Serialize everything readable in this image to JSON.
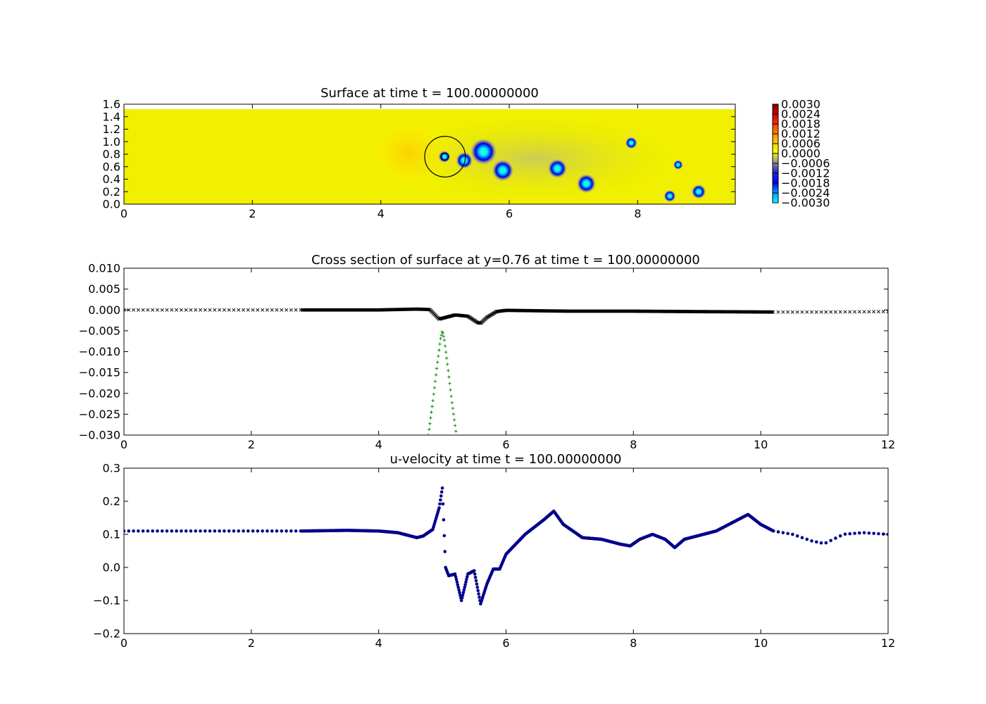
{
  "chart_data": [
    {
      "id": "surface",
      "type": "heatmap",
      "title": "Surface at time t =   100.00000000",
      "xlim": [
        0,
        9.52
      ],
      "ylim": [
        0,
        1.6
      ],
      "xticks": [
        {
          "v": 0,
          "label": "0"
        },
        {
          "v": 2,
          "label": "2"
        },
        {
          "v": 4,
          "label": "4"
        },
        {
          "v": 6,
          "label": "6"
        },
        {
          "v": 8,
          "label": "8"
        }
      ],
      "yticks": [
        {
          "v": 0.0,
          "label": "0.0"
        },
        {
          "v": 0.2,
          "label": "0.2"
        },
        {
          "v": 0.4,
          "label": "0.4"
        },
        {
          "v": 0.6,
          "label": "0.6"
        },
        {
          "v": 0.8,
          "label": "0.8"
        },
        {
          "v": 1.0,
          "label": "1.0"
        },
        {
          "v": 1.2,
          "label": "1.2"
        },
        {
          "v": 1.4,
          "label": "1.4"
        },
        {
          "v": 1.6,
          "label": "1.6"
        }
      ],
      "domain_ymax": 1.52,
      "background_color": "#f0f000",
      "colorbar": {
        "ticks": [
          "0.0030",
          "0.0024",
          "0.0018",
          "0.0012",
          "0.0006",
          "0.0000",
          "−0.0006",
          "−0.0012",
          "−0.0018",
          "−0.0024",
          "−0.0030"
        ],
        "colors": [
          "#800000",
          "#e00000",
          "#ff6000",
          "#ffc000",
          "#ffff00",
          "#a0a080",
          "#3030c0",
          "#0000ff",
          "#00a0ff",
          "#00ffff"
        ]
      },
      "circles": [
        {
          "x": 5.0,
          "y": 0.76,
          "r": 0.35
        },
        {
          "x": 5.0,
          "y": 0.76,
          "r": 0.06
        }
      ],
      "vortices": [
        {
          "x": 4.99,
          "y": 0.76,
          "r": 0.05
        },
        {
          "x": 5.3,
          "y": 0.7,
          "r": 0.07
        },
        {
          "x": 5.6,
          "y": 0.84,
          "r": 0.11
        },
        {
          "x": 5.9,
          "y": 0.54,
          "r": 0.09
        },
        {
          "x": 6.75,
          "y": 0.57,
          "r": 0.08
        },
        {
          "x": 7.2,
          "y": 0.33,
          "r": 0.08
        },
        {
          "x": 7.9,
          "y": 0.98,
          "r": 0.05
        },
        {
          "x": 8.63,
          "y": 0.63,
          "r": 0.04
        },
        {
          "x": 8.5,
          "y": 0.13,
          "r": 0.05
        },
        {
          "x": 8.95,
          "y": 0.2,
          "r": 0.06
        }
      ]
    },
    {
      "id": "cross-section",
      "type": "scatter",
      "title": "Cross section of surface at y=0.76 at time t =   100.00000000",
      "xlim": [
        0,
        12
      ],
      "ylim": [
        -0.03,
        0.01
      ],
      "xticks": [
        {
          "v": 0,
          "label": "0"
        },
        {
          "v": 2,
          "label": "2"
        },
        {
          "v": 4,
          "label": "4"
        },
        {
          "v": 6,
          "label": "6"
        },
        {
          "v": 8,
          "label": "8"
        },
        {
          "v": 10,
          "label": "10"
        },
        {
          "v": 12,
          "label": "12"
        }
      ],
      "yticks": [
        {
          "v": 0.01,
          "label": "0.010"
        },
        {
          "v": 0.005,
          "label": "0.005"
        },
        {
          "v": 0.0,
          "label": "0.000"
        },
        {
          "v": -0.005,
          "label": "−0.005"
        },
        {
          "v": -0.01,
          "label": "−0.010"
        },
        {
          "v": -0.015,
          "label": "−0.015"
        },
        {
          "v": -0.02,
          "label": "−0.020"
        },
        {
          "v": -0.025,
          "label": "−0.025"
        },
        {
          "v": -0.03,
          "label": "−0.030"
        }
      ],
      "series": [
        {
          "marker": "x",
          "color": "#000000",
          "dense_range": [
            2.8,
            10.2
          ],
          "x": [
            0,
            2.8,
            4.0,
            4.6,
            4.8,
            4.95,
            5.05,
            5.2,
            5.4,
            5.55,
            5.6,
            5.7,
            5.85,
            6.0,
            6.5,
            7.0,
            8.0,
            9.0,
            10.2,
            11.0,
            12.0
          ],
          "y": [
            0.0,
            0.0,
            0.0,
            0.0002,
            0.0001,
            -0.0022,
            -0.0018,
            -0.0012,
            -0.0015,
            -0.003,
            -0.0032,
            -0.0018,
            -0.0004,
            -0.0001,
            -0.0002,
            -0.0003,
            -0.0003,
            -0.0004,
            -0.0005,
            -0.0005,
            -0.0004
          ]
        },
        {
          "marker": "+",
          "color": "#008000",
          "x": [
            4.78,
            4.85,
            4.92,
            4.97,
            5.0,
            5.03,
            5.08,
            5.15,
            5.22
          ],
          "y": [
            -0.03,
            -0.022,
            -0.013,
            -0.007,
            -0.005,
            -0.007,
            -0.013,
            -0.022,
            -0.03
          ]
        }
      ]
    },
    {
      "id": "u-velocity",
      "type": "scatter",
      "title": "u-velocity at time t =   100.00000000",
      "xlim": [
        0,
        12
      ],
      "ylim": [
        -0.2,
        0.3
      ],
      "xticks": [
        {
          "v": 0,
          "label": "0"
        },
        {
          "v": 2,
          "label": "2"
        },
        {
          "v": 4,
          "label": "4"
        },
        {
          "v": 6,
          "label": "6"
        },
        {
          "v": 8,
          "label": "8"
        },
        {
          "v": 10,
          "label": "10"
        },
        {
          "v": 12,
          "label": "12"
        }
      ],
      "yticks": [
        {
          "v": 0.3,
          "label": "0.3"
        },
        {
          "v": 0.2,
          "label": "0.2"
        },
        {
          "v": 0.1,
          "label": "0.1"
        },
        {
          "v": 0.0,
          "label": "0.0"
        },
        {
          "v": -0.1,
          "label": "−0.1"
        },
        {
          "v": -0.2,
          "label": "−0.2"
        }
      ],
      "series": [
        {
          "marker": "o",
          "color": "#00008b",
          "dense_range": [
            2.8,
            10.2
          ],
          "x": [
            0,
            2.8,
            3.5,
            4.0,
            4.3,
            4.6,
            4.7,
            4.85,
            4.95,
            5.0,
            5.05,
            5.1,
            5.2,
            5.3,
            5.4,
            5.5,
            5.6,
            5.7,
            5.8,
            5.9,
            6.0,
            6.3,
            6.6,
            6.75,
            6.9,
            7.2,
            7.5,
            7.8,
            7.95,
            8.1,
            8.3,
            8.5,
            8.65,
            8.8,
            9.0,
            9.3,
            9.6,
            9.8,
            10.0,
            10.2,
            10.5,
            10.8,
            11.0,
            11.3,
            11.6,
            12.0
          ],
          "y": [
            0.11,
            0.11,
            0.112,
            0.11,
            0.105,
            0.09,
            0.095,
            0.115,
            0.18,
            0.24,
            0.0,
            -0.025,
            -0.02,
            -0.1,
            -0.02,
            -0.01,
            -0.11,
            -0.05,
            -0.005,
            -0.005,
            0.04,
            0.1,
            0.145,
            0.17,
            0.13,
            0.09,
            0.085,
            0.07,
            0.065,
            0.085,
            0.1,
            0.085,
            0.06,
            0.085,
            0.095,
            0.11,
            0.14,
            0.16,
            0.13,
            0.11,
            0.1,
            0.08,
            0.072,
            0.1,
            0.105,
            0.1
          ]
        }
      ]
    }
  ]
}
